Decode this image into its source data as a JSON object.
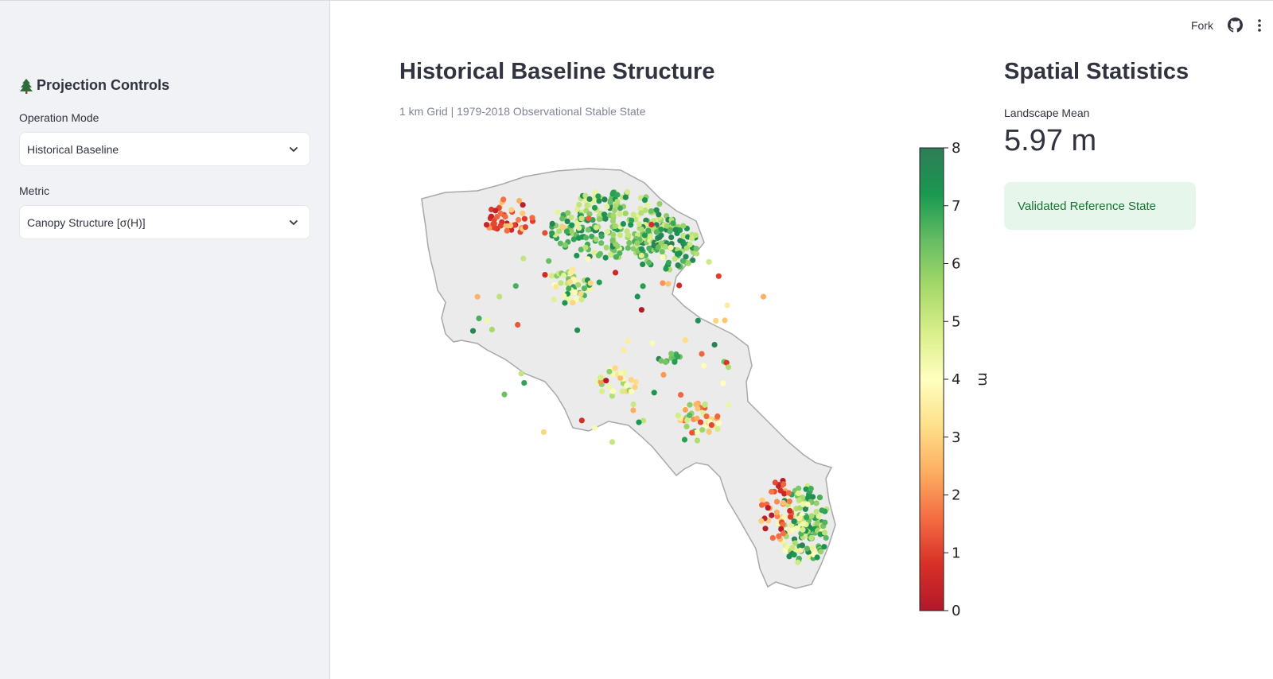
{
  "header": {
    "fork_label": "Fork",
    "github_icon": "github-icon",
    "menu_icon": "vertical-dots-icon"
  },
  "sidebar": {
    "title": "Projection Controls",
    "title_icon": "evergreen-tree-icon",
    "operation_mode": {
      "label": "Operation Mode",
      "value": "Historical Baseline"
    },
    "metric": {
      "label": "Metric",
      "value": "Canopy Structure [σ(H)]"
    }
  },
  "main": {
    "title": "Historical Baseline Structure",
    "caption": "1 km Grid | 1979-2018 Observational Stable State"
  },
  "stats": {
    "title": "Spatial Statistics",
    "metric_label": "Landscape Mean",
    "metric_value": "5.97 m",
    "status_message": "Validated Reference State"
  },
  "chart_data": {
    "type": "scatter",
    "title": "",
    "colorbar": {
      "label": "m",
      "range": [
        0,
        8
      ],
      "ticks": [
        "0",
        "1",
        "2",
        "3",
        "4",
        "5",
        "6",
        "7",
        "8"
      ],
      "colormap": [
        "#b2182b",
        "#d73027",
        "#f46d43",
        "#fdae61",
        "#fee08b",
        "#ffffbf",
        "#d9ef8b",
        "#a6d96a",
        "#66bd63",
        "#1a9850",
        "#2e7d57"
      ]
    },
    "map_fill": "#ebebeb",
    "map_stroke": "#a8a8a8"
  }
}
